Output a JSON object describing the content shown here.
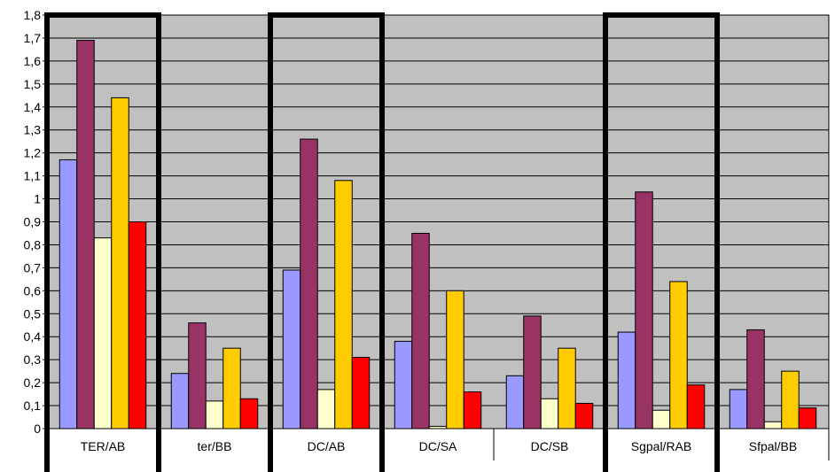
{
  "chart_data": {
    "type": "bar",
    "title": "",
    "xlabel": "",
    "ylabel": "",
    "ylim": [
      0,
      1.8
    ],
    "ytick_step": 0.1,
    "ytick_labels": [
      "0",
      "0,1",
      "0,2",
      "0,3",
      "0,4",
      "0,5",
      "0,6",
      "0,7",
      "0,8",
      "0,9",
      "1",
      "1,1",
      "1,2",
      "1,3",
      "1,4",
      "1,5",
      "1,6",
      "1,7",
      "1,8"
    ],
    "grid": true,
    "legend": "none",
    "categories": [
      "TER/AB",
      "ter/BB",
      "DC/AB",
      "DC/SA",
      "DC/SB",
      "Sgpal/RAB",
      "Sfpal/BB"
    ],
    "highlighted_categories": [
      "TER/AB",
      "DC/AB",
      "Sgpal/RAB"
    ],
    "background_color": "#c0c0c0",
    "series": [
      {
        "color": "#9999ff",
        "values": [
          1.17,
          0.24,
          0.69,
          0.38,
          0.23,
          0.42,
          0.17
        ]
      },
      {
        "color": "#993366",
        "values": [
          1.69,
          0.46,
          1.26,
          0.85,
          0.49,
          1.03,
          0.43
        ]
      },
      {
        "color": "#ffffcc",
        "values": [
          0.83,
          0.12,
          0.17,
          0.01,
          0.13,
          0.08,
          0.03
        ]
      },
      {
        "color": "#ffcc00",
        "values": [
          1.44,
          0.35,
          1.08,
          0.6,
          0.35,
          0.64,
          0.25
        ]
      },
      {
        "color": "#ff0000",
        "values": [
          0.9,
          0.13,
          0.31,
          0.16,
          0.11,
          0.19,
          0.09
        ]
      }
    ]
  }
}
